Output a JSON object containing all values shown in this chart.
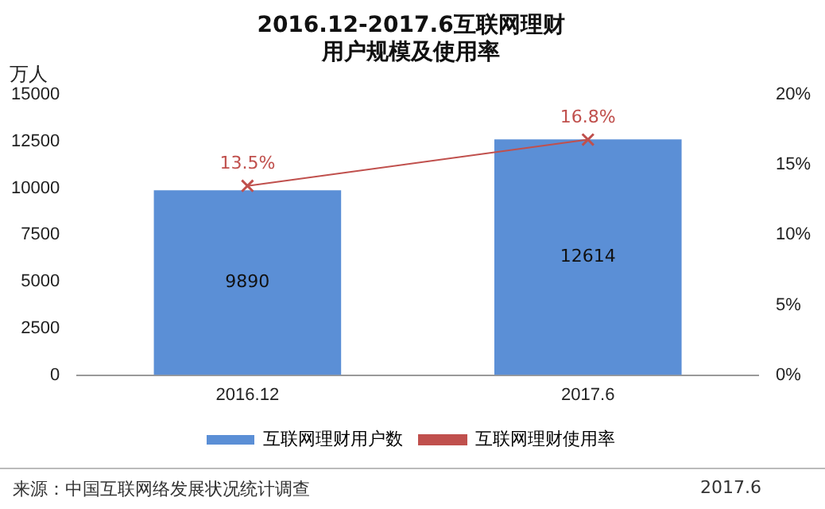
{
  "chart_data": {
    "type": "bar",
    "title": "2016.12-2017.6互联网理财",
    "subtitle": "用户规模及使用率",
    "ylabel": "万人",
    "categories": [
      "2016.12",
      "2017.6"
    ],
    "series": [
      {
        "name": "互联网理财用户数",
        "color": "#5b8fd6",
        "values": [
          9890,
          12614
        ],
        "value_labels": [
          "9890",
          "12614"
        ]
      },
      {
        "name": "互联网理财使用率",
        "type": "line",
        "axis": "y2",
        "color": "#c0504d",
        "marker": "cross",
        "values": [
          13.5,
          16.8
        ],
        "value_labels": [
          "13.5%",
          "16.8%"
        ]
      }
    ],
    "ylim": [
      0,
      15000
    ],
    "yticks": [
      0,
      2500,
      5000,
      7500,
      10000,
      12500,
      15000
    ],
    "y2lim": [
      0,
      20
    ],
    "y2ticks": [
      {
        "value": 0,
        "label": "0%"
      },
      {
        "value": 5,
        "label": "5%"
      },
      {
        "value": 10,
        "label": "10%"
      },
      {
        "value": 15,
        "label": "15%"
      },
      {
        "value": 20,
        "label": "20%"
      }
    ],
    "grid": false,
    "legend": "bottom",
    "annotations": [
      "来源：中国互联网络发展状况统计调查",
      "2017.6"
    ]
  }
}
